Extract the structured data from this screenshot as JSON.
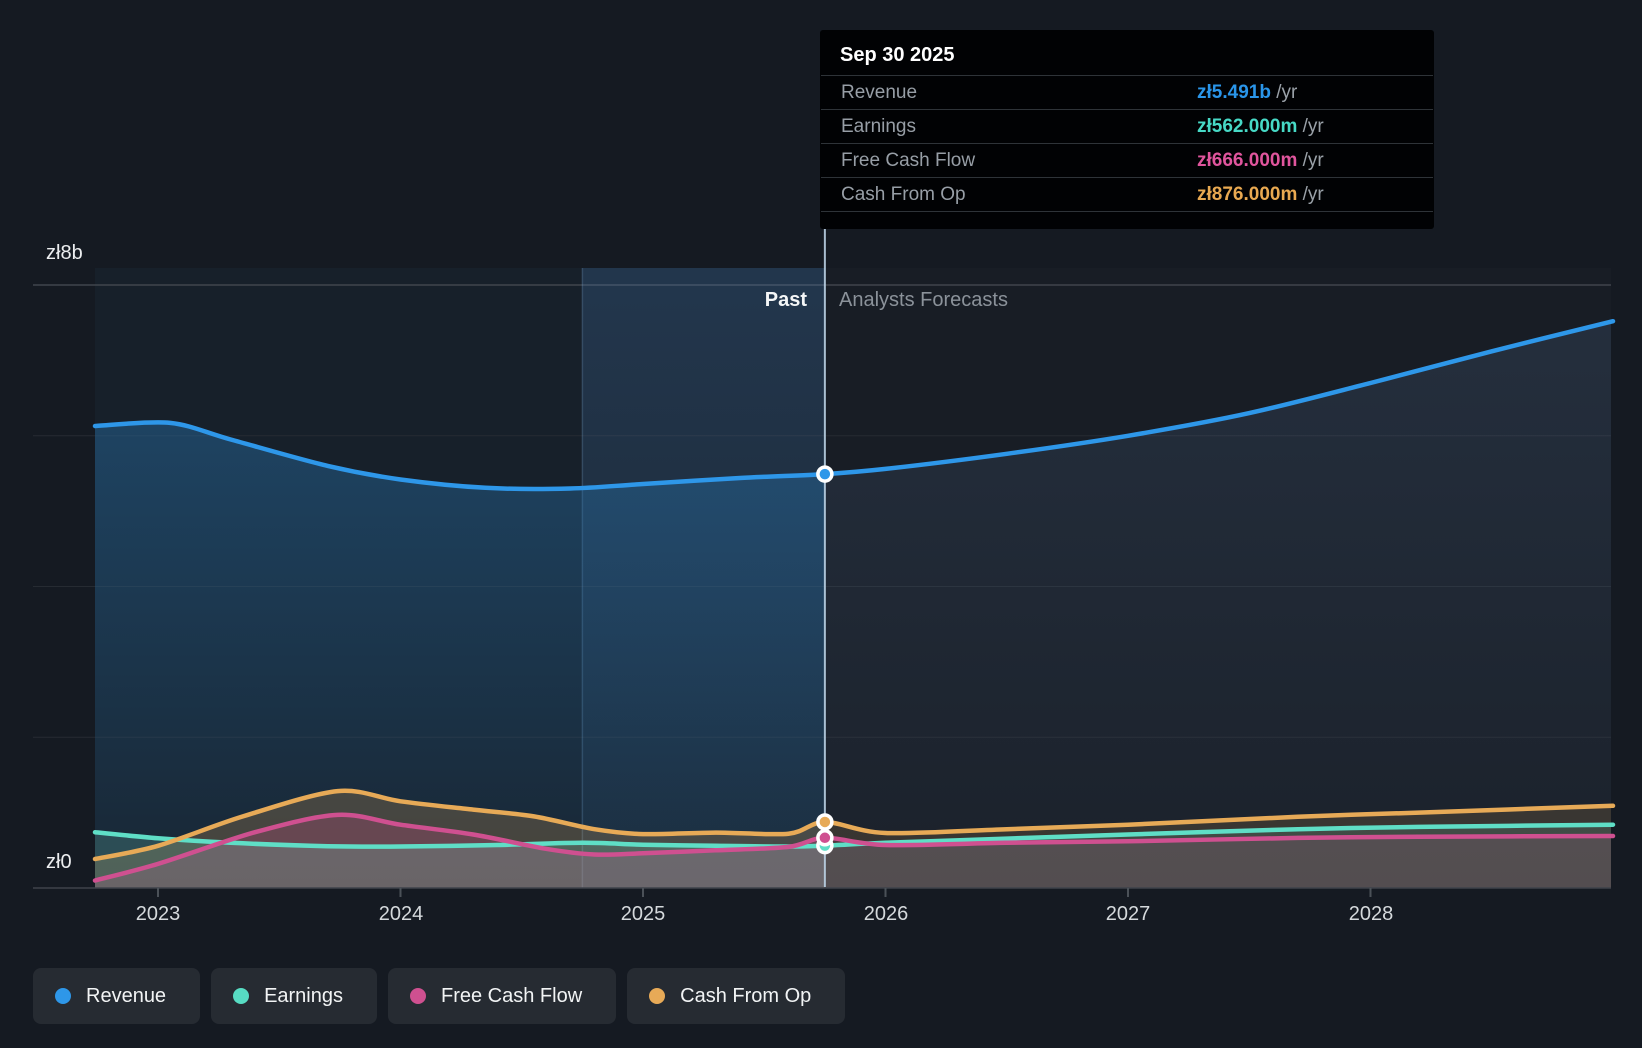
{
  "tooltip": {
    "title": "Sep 30 2025",
    "rows": [
      {
        "label": "Revenue",
        "value": "zł5.491b",
        "suffix": " /yr",
        "color": "#2a95e9"
      },
      {
        "label": "Earnings",
        "value": "zł562.000m",
        "suffix": " /yr",
        "color": "#47d9c6"
      },
      {
        "label": "Free Cash Flow",
        "value": "zł666.000m",
        "suffix": " /yr",
        "color": "#e0559d"
      },
      {
        "label": "Cash From Op",
        "value": "zł876.000m",
        "suffix": " /yr",
        "color": "#e9a951"
      }
    ]
  },
  "axis": {
    "y_top_label": "zł8b",
    "y_zero_label": "zł0",
    "x_labels": [
      "2023",
      "2024",
      "2025",
      "2026",
      "2027",
      "2028"
    ],
    "past_label": "Past",
    "forecast_label": "Analysts Forecasts"
  },
  "legend": [
    {
      "label": "Revenue",
      "color": "#2e97e9"
    },
    {
      "label": "Earnings",
      "color": "#57dcc3"
    },
    {
      "label": "Free Cash Flow",
      "color": "#cf5090"
    },
    {
      "label": "Cash From Op",
      "color": "#e7aa57"
    }
  ],
  "chart_data": {
    "type": "area",
    "title": "Past and forecast financials",
    "x_domain": [
      2022.74,
      2029.0
    ],
    "x_ticks": [
      2023,
      2024,
      2025,
      2026,
      2027,
      2028
    ],
    "ylim": [
      0,
      8
    ],
    "y_unit": "zł billions",
    "gridline_values_b": [
      8,
      6,
      4,
      2
    ],
    "zero_line_b": 0,
    "divider_x": 2025.75,
    "divider_date": "Sep 30 2025",
    "highlight_range": [
      2024.75,
      2025.75
    ],
    "legend_position": "bottom",
    "series": [
      {
        "name": "Revenue",
        "color": "#2e97e9",
        "points": [
          [
            2022.74,
            6.13
          ],
          [
            2023.05,
            6.17
          ],
          [
            2023.3,
            5.95
          ],
          [
            2023.7,
            5.6
          ],
          [
            2024.0,
            5.42
          ],
          [
            2024.35,
            5.31
          ],
          [
            2024.7,
            5.3
          ],
          [
            2025.0,
            5.36
          ],
          [
            2025.4,
            5.44
          ],
          [
            2025.75,
            5.491
          ],
          [
            2026.0,
            5.56
          ],
          [
            2026.5,
            5.76
          ],
          [
            2027.0,
            6.0
          ],
          [
            2027.5,
            6.3
          ],
          [
            2028.0,
            6.7
          ],
          [
            2028.5,
            7.12
          ],
          [
            2029.0,
            7.52
          ]
        ]
      },
      {
        "name": "Earnings",
        "color": "#5fdec6",
        "points": [
          [
            2022.74,
            0.74
          ],
          [
            2023.0,
            0.66
          ],
          [
            2023.3,
            0.6
          ],
          [
            2023.7,
            0.555
          ],
          [
            2024.0,
            0.55
          ],
          [
            2024.4,
            0.57
          ],
          [
            2024.75,
            0.6
          ],
          [
            2025.0,
            0.575
          ],
          [
            2025.3,
            0.56
          ],
          [
            2025.6,
            0.55
          ],
          [
            2025.75,
            0.562
          ],
          [
            2026.0,
            0.6
          ],
          [
            2026.5,
            0.655
          ],
          [
            2027.0,
            0.71
          ],
          [
            2027.7,
            0.78
          ],
          [
            2028.2,
            0.81
          ],
          [
            2029.0,
            0.84
          ]
        ]
      },
      {
        "name": "Free Cash Flow",
        "color": "#cf5090",
        "points": [
          [
            2022.74,
            0.1
          ],
          [
            2023.0,
            0.32
          ],
          [
            2023.4,
            0.74
          ],
          [
            2023.74,
            0.97
          ],
          [
            2024.0,
            0.84
          ],
          [
            2024.3,
            0.71
          ],
          [
            2024.6,
            0.52
          ],
          [
            2024.8,
            0.445
          ],
          [
            2025.0,
            0.46
          ],
          [
            2025.3,
            0.5
          ],
          [
            2025.6,
            0.545
          ],
          [
            2025.75,
            0.666
          ],
          [
            2026.0,
            0.57
          ],
          [
            2026.5,
            0.6
          ],
          [
            2027.0,
            0.62
          ],
          [
            2027.7,
            0.665
          ],
          [
            2028.2,
            0.68
          ],
          [
            2029.0,
            0.69
          ]
        ]
      },
      {
        "name": "Cash From Op",
        "color": "#e7aa57",
        "points": [
          [
            2022.74,
            0.385
          ],
          [
            2023.0,
            0.56
          ],
          [
            2023.35,
            0.95
          ],
          [
            2023.74,
            1.285
          ],
          [
            2024.0,
            1.15
          ],
          [
            2024.3,
            1.04
          ],
          [
            2024.55,
            0.95
          ],
          [
            2024.8,
            0.78
          ],
          [
            2025.0,
            0.715
          ],
          [
            2025.3,
            0.735
          ],
          [
            2025.6,
            0.72
          ],
          [
            2025.75,
            0.876
          ],
          [
            2026.0,
            0.73
          ],
          [
            2026.5,
            0.78
          ],
          [
            2027.0,
            0.84
          ],
          [
            2027.7,
            0.945
          ],
          [
            2028.2,
            1.0
          ],
          [
            2029.0,
            1.09
          ]
        ]
      }
    ],
    "markers": [
      {
        "series": "Revenue",
        "x": 2025.75,
        "value": 5.491
      },
      {
        "series": "Earnings",
        "x": 2025.75,
        "value": 0.562
      },
      {
        "series": "Free Cash Flow",
        "x": 2025.75,
        "value": 0.666
      },
      {
        "series": "Cash From Op",
        "x": 2025.75,
        "value": 0.876
      }
    ]
  }
}
